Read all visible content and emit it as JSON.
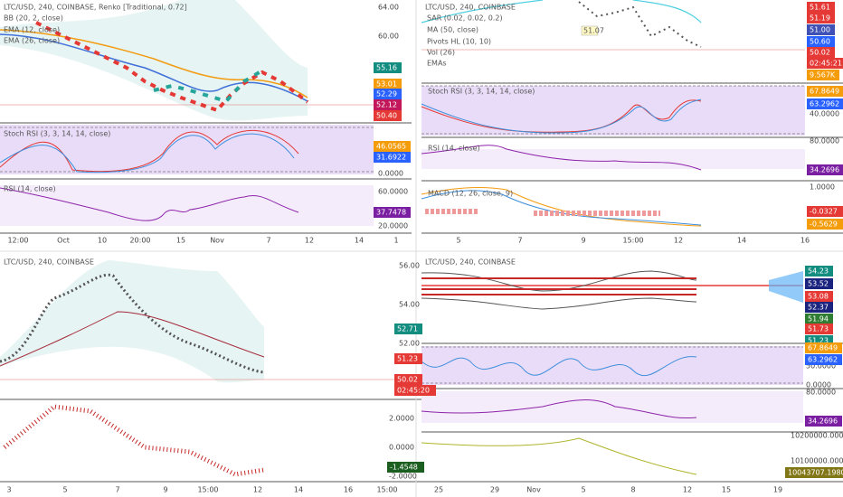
{
  "top_left": {
    "title": "LTC/USD, 240, COINBASE, Renko [Traditional, 0.72]",
    "indicators": [
      "BB (20, 2, close)",
      "EMA (12, close)",
      "EMA (26, close)"
    ],
    "price_axis": [
      "64.00",
      "60.00"
    ],
    "price_tags": [
      "55.16",
      "53.01",
      "52.29",
      "52.12",
      "50.40"
    ],
    "stoch_rsi": {
      "label": "Stoch RSI (3, 3, 14, 14, close)",
      "axis": [
        "0.0000"
      ],
      "tags": [
        "46.0565",
        "31.6922"
      ]
    },
    "rsi": {
      "label": "RSI (14, close)",
      "axis": [
        "60.0000",
        "20.0000"
      ],
      "tags": [
        "37.7478"
      ]
    },
    "time_axis": [
      "12:00",
      "Oct",
      "10",
      "20:00",
      "15",
      "Nov",
      "7",
      "12",
      "14",
      "1"
    ]
  },
  "top_right": {
    "title": "LTC/USD, 240, COINBASE",
    "indicators": [
      "SAR (0.02, 0.02, 0.2)",
      "MA (50, close)",
      "Pivots HL (10, 10)",
      "Vol (26)",
      "EMAs"
    ],
    "pivot_label": "51.07",
    "price_tags": [
      "51.61",
      "51.19",
      "51.00",
      "50.60",
      "50.02",
      "02:45:21",
      "9.567K"
    ],
    "stoch_rsi": {
      "label": "Stoch RSI (3, 3, 14, 14, close)",
      "axis": [
        "40.0000"
      ],
      "tags": [
        "67.8649",
        "63.2962"
      ]
    },
    "rsi": {
      "label": "RSI (14, close)",
      "axis": [
        "80.0000"
      ],
      "tags": [
        "34.2696"
      ]
    },
    "macd": {
      "label": "MACD (12, 26, close, 9)",
      "axis": [
        "1.0000"
      ],
      "tags": [
        "-0.0327",
        "-0.5629"
      ]
    },
    "time_axis": [
      "5",
      "7",
      "9",
      "15:00",
      "12",
      "14",
      "16"
    ]
  },
  "bottom_left": {
    "title": "LTC/USD, 240, COINBASE",
    "price_axis": [
      "56.00",
      "54.00",
      "52.00"
    ],
    "price_tags": [
      "52.71",
      "51.23",
      "50.02",
      "02:45:20"
    ],
    "osc_axis": [
      "2.0000",
      "0.0000",
      "-2.0000"
    ],
    "osc_tags": [
      "-1.4548"
    ],
    "time_axis": [
      "3",
      "5",
      "7",
      "9",
      "15:00",
      "12",
      "14",
      "16",
      "15:00"
    ]
  },
  "bottom_right": {
    "title": "LTC/USD, 240, COINBASE",
    "price_tags": [
      "54.23",
      "53.52",
      "53.08",
      "52.37",
      "51.94",
      "51.73",
      "51.23"
    ],
    "stoch_rsi": {
      "axis": [
        "50.0000",
        "0.0000"
      ],
      "tags": [
        "67.8649",
        "63.2962"
      ]
    },
    "rsi": {
      "axis": [
        "80.0000"
      ],
      "tags": [
        "34.2696"
      ]
    },
    "volume": {
      "axis": [
        "10200000.0000",
        "10100000.0000"
      ],
      "tags": [
        "10043707.1980"
      ]
    },
    "time_axis": [
      "25",
      "29",
      "Nov",
      "5",
      "8",
      "12",
      "15",
      "19"
    ]
  }
}
